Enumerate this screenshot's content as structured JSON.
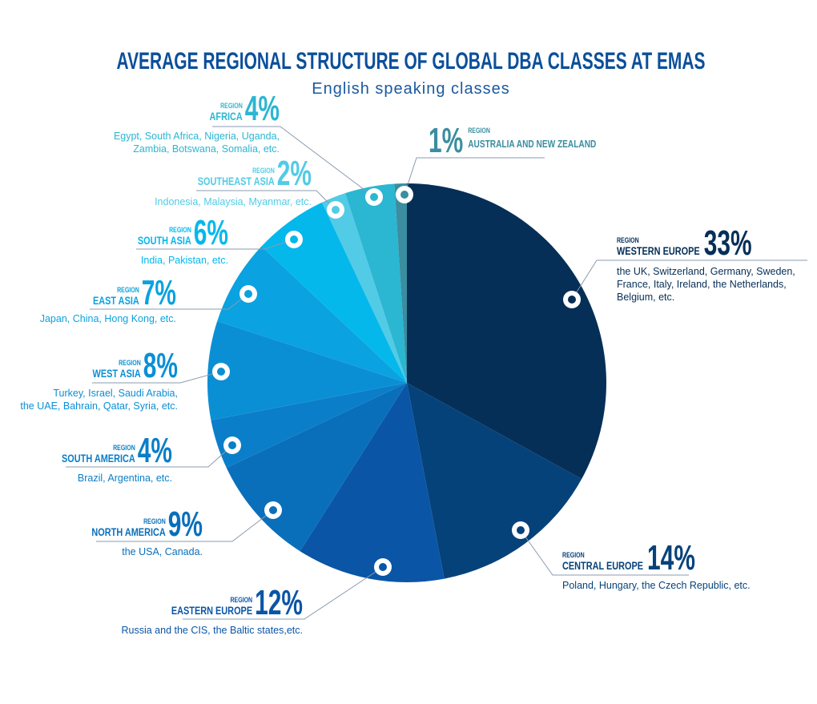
{
  "chart_data": {
    "type": "pie",
    "title": "AVERAGE REGIONAL STRUCTURE OF GLOBAL DBA CLASSES AT EMAS",
    "subtitle": "English speaking classes",
    "region_label": "REGION",
    "categories": [
      "WESTERN EUROPE",
      "CENTRAL EUROPE",
      "EASTERN EUROPE",
      "NORTH AMERICA",
      "SOUTH AMERICA",
      "WEST ASIA",
      "EAST ASIA",
      "SOUTH ASIA",
      "SOUTHEAST ASIA",
      "AFRICA",
      "AUSTRALIA AND NEW ZEALAND"
    ],
    "values": [
      33,
      14,
      12,
      9,
      4,
      8,
      7,
      6,
      2,
      4,
      1
    ],
    "value_labels": [
      "33%",
      "14%",
      "12%",
      "9%",
      "4%",
      "8%",
      "7%",
      "6%",
      "2%",
      "4%",
      "1%"
    ],
    "descriptions": [
      [
        "the UK, Switzerland, Germany, Sweden,",
        "France, Italy, Ireland, the Netherlands,",
        "Belgium, etc."
      ],
      [
        "Poland, Hungary, the Czech Republic, etc."
      ],
      [
        "Russia and the CIS, the Baltic states,etc."
      ],
      [
        "the USA, Canada."
      ],
      [
        "Brazil, Argentina, etc."
      ],
      [
        "Turkey, Israel, Saudi Arabia,",
        "the UAE, Bahrain, Qatar, Syria, etc."
      ],
      [
        "Japan, China, Hong Kong, etc."
      ],
      [
        "India, Pakistan, etc."
      ],
      [
        "Indonesia, Malaysia, Myanmar, etc."
      ],
      [
        "Egypt, South Africa, Nigeria, Uganda,",
        "Zambia, Botswana, Somalia, etc."
      ],
      []
    ],
    "colors": [
      "#062f57",
      "#06427a",
      "#0a55a6",
      "#0a6fba",
      "#0a7ec8",
      "#0b8fd4",
      "#0aa2e0",
      "#05b8ec",
      "#52cbe6",
      "#2bb6d2",
      "#3a8ea0"
    ]
  }
}
